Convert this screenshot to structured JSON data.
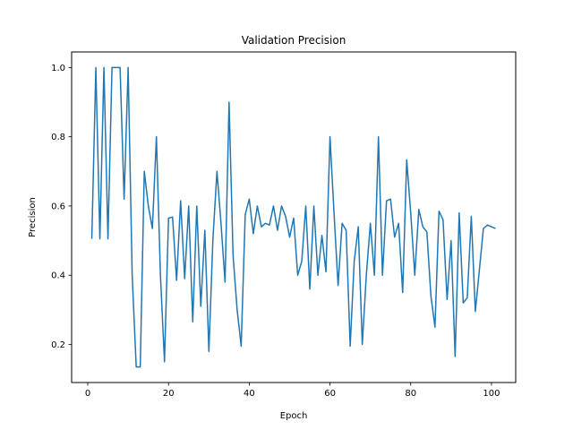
{
  "chart_data": {
    "type": "line",
    "title": "Validation Precision",
    "xlabel": "Epoch",
    "ylabel": "Precision",
    "xlim": [
      -4,
      106
    ],
    "ylim": [
      0.09,
      1.045
    ],
    "xticks": [
      0,
      20,
      40,
      60,
      80,
      100
    ],
    "yticks": [
      0.2,
      0.4,
      0.6,
      0.8,
      1.0
    ],
    "xtick_labels": [
      "0",
      "20",
      "40",
      "60",
      "80",
      "100"
    ],
    "ytick_labels": [
      "0.2",
      "0.4",
      "0.6",
      "0.8",
      "1.0"
    ],
    "grid": false,
    "line_color": "#1f77b4",
    "series": [
      {
        "x": [
          1,
          2,
          3,
          4,
          5,
          6,
          7,
          8,
          9,
          10,
          11,
          12,
          13,
          14,
          15,
          16,
          17,
          18,
          19,
          20,
          21,
          22,
          23,
          24,
          25,
          26,
          27,
          28,
          29,
          30,
          31,
          32,
          33,
          34,
          35,
          36,
          37,
          38,
          39,
          40,
          41,
          42,
          43,
          44,
          45,
          46,
          47,
          48,
          49,
          50,
          51,
          52,
          53,
          54,
          55,
          56,
          57,
          58,
          59,
          60,
          61,
          62,
          63,
          64,
          65,
          66,
          67,
          68,
          69,
          70,
          71,
          72,
          73,
          74,
          75,
          76,
          77,
          78,
          79,
          80,
          81,
          82,
          83,
          84,
          85,
          86,
          87,
          88,
          89,
          90,
          91,
          92,
          93,
          94,
          95,
          96,
          97,
          98,
          99,
          100,
          101
        ],
        "values": [
          0.505,
          1.0,
          0.505,
          1.0,
          0.505,
          1.0,
          1.0,
          1.0,
          0.62,
          1.0,
          0.4,
          0.135,
          0.135,
          0.7,
          0.6,
          0.535,
          0.8,
          0.4,
          0.15,
          0.565,
          0.568,
          0.385,
          0.615,
          0.39,
          0.6,
          0.265,
          0.6,
          0.31,
          0.53,
          0.18,
          0.505,
          0.7,
          0.55,
          0.38,
          0.9,
          0.455,
          0.3,
          0.195,
          0.575,
          0.62,
          0.52,
          0.6,
          0.54,
          0.55,
          0.545,
          0.6,
          0.53,
          0.6,
          0.57,
          0.51,
          0.565,
          0.4,
          0.44,
          0.6,
          0.36,
          0.6,
          0.4,
          0.515,
          0.41,
          0.8,
          0.58,
          0.37,
          0.55,
          0.53,
          0.195,
          0.44,
          0.54,
          0.2,
          0.4,
          0.55,
          0.4,
          0.8,
          0.4,
          0.615,
          0.62,
          0.51,
          0.55,
          0.35,
          0.733,
          0.58,
          0.4,
          0.59,
          0.54,
          0.525,
          0.34,
          0.25,
          0.585,
          0.56,
          0.33,
          0.5,
          0.165,
          0.58,
          0.32,
          0.335,
          0.57,
          0.295,
          0.415,
          0.535,
          0.545,
          0.54,
          0.535
        ]
      }
    ]
  }
}
